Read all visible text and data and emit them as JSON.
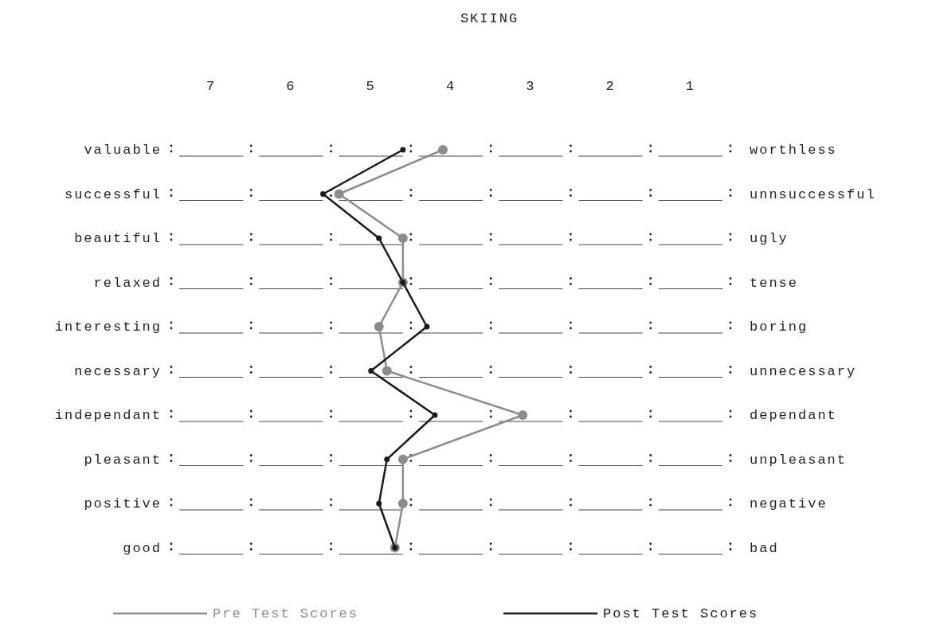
{
  "chart_data": {
    "type": "line",
    "orientation": "horizontal",
    "title": "SKIING",
    "categories": [
      "valuable",
      "successful",
      "beautiful",
      "relaxed",
      "interesting",
      "necessary",
      "independant",
      "pleasant",
      "positive",
      "good"
    ],
    "y2_categories": [
      "worthless",
      "unnsuccessful",
      "ugly",
      "tense",
      "boring",
      "unnecessary",
      "dependant",
      "unpleasant",
      "negative",
      "bad"
    ],
    "xlim": [
      7.5,
      0.5
    ],
    "xticks": [
      7,
      6,
      5,
      4,
      3,
      2,
      1
    ],
    "series": [
      {
        "name": "Pre Test Scores",
        "color": "#8c8c8c",
        "values": [
          4.1,
          5.4,
          4.6,
          4.6,
          4.9,
          4.8,
          3.1,
          4.6,
          4.6,
          4.7
        ]
      },
      {
        "name": "Post Test Scores",
        "color": "#1a1a1a",
        "values": [
          4.6,
          5.6,
          4.9,
          4.6,
          4.3,
          5.0,
          4.2,
          4.8,
          4.9,
          4.7
        ]
      }
    ],
    "marker": "circle",
    "line_style": "solid",
    "legend": "bottom",
    "grid": false
  }
}
